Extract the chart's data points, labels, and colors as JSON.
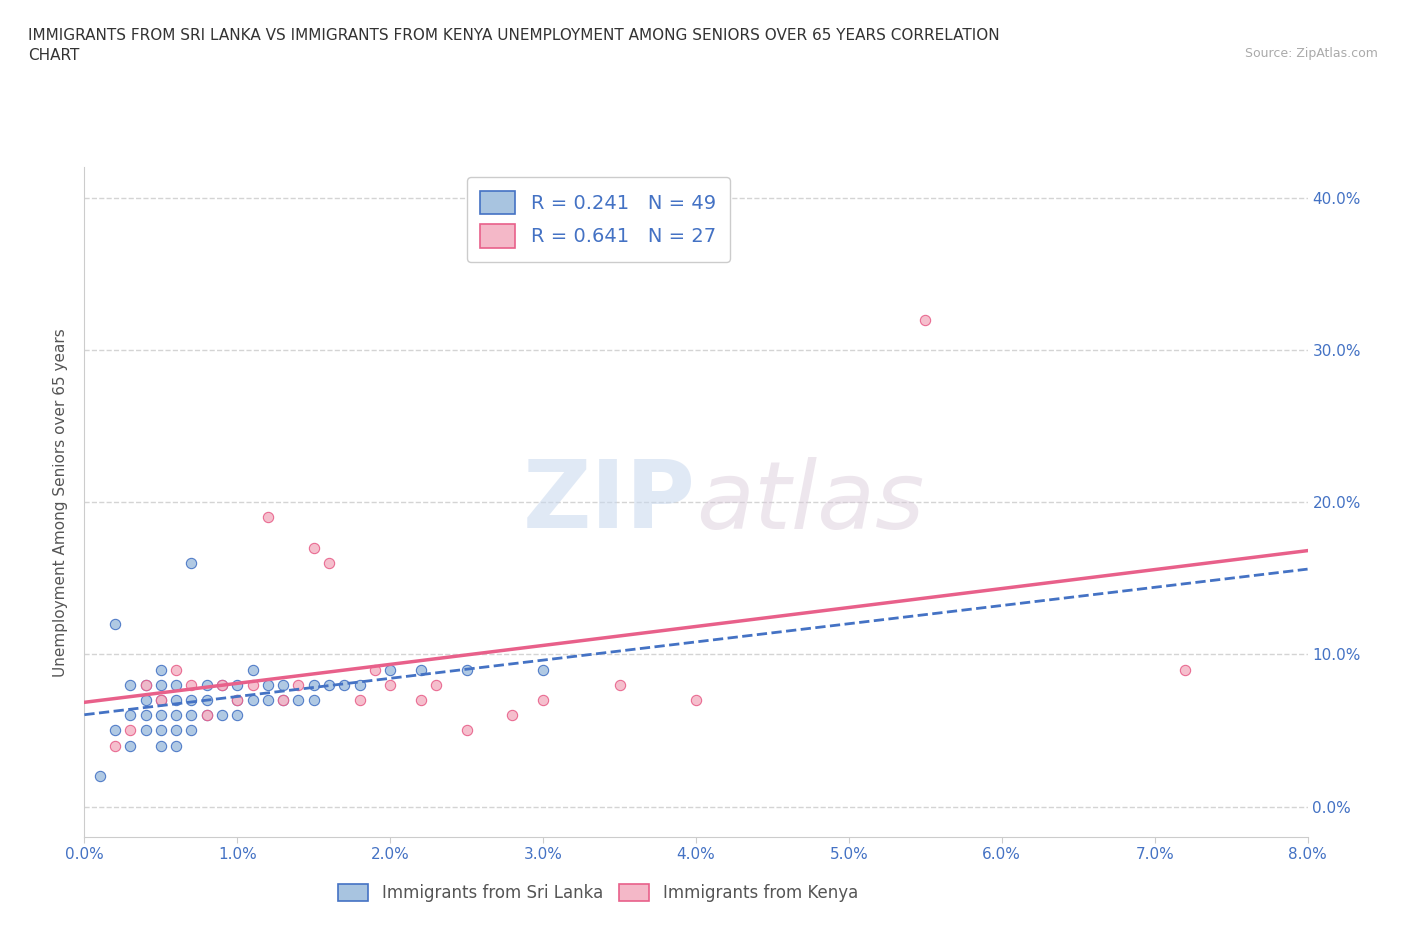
{
  "title": "IMMIGRANTS FROM SRI LANKA VS IMMIGRANTS FROM KENYA UNEMPLOYMENT AMONG SENIORS OVER 65 YEARS CORRELATION\nCHART",
  "source": "Source: ZipAtlas.com",
  "ylabel": "Unemployment Among Seniors over 65 years",
  "xlim": [
    0.0,
    0.08
  ],
  "ylim": [
    -0.02,
    0.42
  ],
  "xticks": [
    0.0,
    0.01,
    0.02,
    0.03,
    0.04,
    0.05,
    0.06,
    0.07,
    0.08
  ],
  "yticks": [
    0.0,
    0.1,
    0.2,
    0.3,
    0.4
  ],
  "sri_lanka_color": "#a8c4e0",
  "kenya_color": "#f4b8c8",
  "sri_lanka_line_color": "#4472c4",
  "kenya_line_color": "#e8608a",
  "sri_lanka_R": 0.241,
  "sri_lanka_N": 49,
  "kenya_R": 0.641,
  "kenya_N": 27,
  "watermark_zip": "ZIP",
  "watermark_atlas": "atlas",
  "sri_lanka_x": [
    0.001,
    0.002,
    0.002,
    0.003,
    0.003,
    0.003,
    0.004,
    0.004,
    0.004,
    0.004,
    0.005,
    0.005,
    0.005,
    0.005,
    0.005,
    0.005,
    0.006,
    0.006,
    0.006,
    0.006,
    0.006,
    0.007,
    0.007,
    0.007,
    0.007,
    0.008,
    0.008,
    0.008,
    0.009,
    0.009,
    0.01,
    0.01,
    0.01,
    0.011,
    0.011,
    0.012,
    0.012,
    0.013,
    0.013,
    0.014,
    0.015,
    0.015,
    0.016,
    0.017,
    0.018,
    0.02,
    0.022,
    0.025,
    0.03
  ],
  "sri_lanka_y": [
    0.02,
    0.05,
    0.12,
    0.04,
    0.06,
    0.08,
    0.05,
    0.06,
    0.07,
    0.08,
    0.04,
    0.05,
    0.06,
    0.07,
    0.08,
    0.09,
    0.04,
    0.05,
    0.06,
    0.07,
    0.08,
    0.05,
    0.06,
    0.07,
    0.16,
    0.06,
    0.07,
    0.08,
    0.06,
    0.08,
    0.06,
    0.07,
    0.08,
    0.07,
    0.09,
    0.07,
    0.08,
    0.07,
    0.08,
    0.07,
    0.07,
    0.08,
    0.08,
    0.08,
    0.08,
    0.09,
    0.09,
    0.09,
    0.09
  ],
  "kenya_x": [
    0.002,
    0.003,
    0.004,
    0.005,
    0.006,
    0.007,
    0.008,
    0.009,
    0.01,
    0.011,
    0.012,
    0.013,
    0.014,
    0.015,
    0.016,
    0.018,
    0.019,
    0.02,
    0.022,
    0.023,
    0.025,
    0.028,
    0.03,
    0.035,
    0.04,
    0.055,
    0.072
  ],
  "kenya_y": [
    0.04,
    0.05,
    0.08,
    0.07,
    0.09,
    0.08,
    0.06,
    0.08,
    0.07,
    0.08,
    0.19,
    0.07,
    0.08,
    0.17,
    0.16,
    0.07,
    0.09,
    0.08,
    0.07,
    0.08,
    0.05,
    0.06,
    0.07,
    0.08,
    0.07,
    0.32,
    0.09
  ],
  "background_color": "#ffffff",
  "grid_color": "#d0d0d0"
}
